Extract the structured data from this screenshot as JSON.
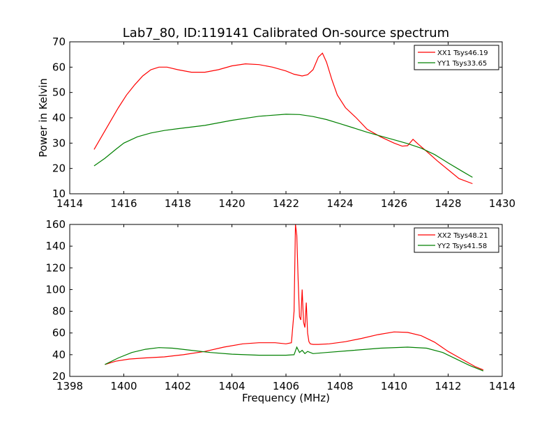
{
  "chart_data": [
    {
      "type": "line",
      "title": "Lab7_80, ID:119141 Calibrated On-source spectrum",
      "xlabel": "",
      "ylabel": "Power in Kelvin",
      "xlim": [
        1414,
        1430
      ],
      "ylim": [
        10,
        70
      ],
      "xticks": [
        1414,
        1416,
        1418,
        1420,
        1422,
        1424,
        1426,
        1428,
        1430
      ],
      "yticks": [
        10,
        20,
        30,
        40,
        50,
        60,
        70
      ],
      "legend": "top-right",
      "grid": false,
      "series": [
        {
          "name": "XX1 Tsys46.19",
          "color": "#ff0000",
          "x": [
            1414.9,
            1415.2,
            1415.5,
            1415.8,
            1416.1,
            1416.4,
            1416.7,
            1417.0,
            1417.3,
            1417.6,
            1418.0,
            1418.5,
            1419.0,
            1419.5,
            1420.0,
            1420.5,
            1421.0,
            1421.5,
            1422.0,
            1422.3,
            1422.6,
            1422.8,
            1423.0,
            1423.2,
            1423.35,
            1423.5,
            1423.7,
            1423.9,
            1424.2,
            1424.6,
            1425.0,
            1425.5,
            1426.0,
            1426.3,
            1426.5,
            1426.7,
            1426.9,
            1427.2,
            1427.6,
            1428.0,
            1428.4,
            1428.9
          ],
          "y": [
            27.5,
            33,
            38.5,
            44,
            49,
            53,
            56.5,
            59,
            60,
            60,
            59,
            58,
            58,
            59,
            60.5,
            61.3,
            61,
            60,
            58.5,
            57.2,
            56.5,
            57,
            59,
            64,
            65.5,
            62,
            55,
            49,
            44,
            40,
            35.5,
            32.5,
            30,
            28.8,
            29,
            31.5,
            29.5,
            26.8,
            23,
            19.5,
            16,
            14
          ]
        },
        {
          "name": "YY1 Tsys33.65",
          "color": "#008000",
          "x": [
            1414.9,
            1415.3,
            1415.7,
            1416.0,
            1416.5,
            1417.0,
            1417.5,
            1418.0,
            1419.0,
            1420.0,
            1421.0,
            1422.0,
            1422.5,
            1423.0,
            1423.5,
            1424.0,
            1424.5,
            1425.0,
            1425.5,
            1426.0,
            1426.5,
            1427.0,
            1427.5,
            1428.0,
            1428.5,
            1428.9
          ],
          "y": [
            21,
            24,
            27.5,
            30,
            32.5,
            34,
            35,
            35.7,
            37,
            39,
            40.6,
            41.4,
            41.3,
            40.5,
            39.3,
            37.7,
            36,
            34.3,
            32.8,
            31.3,
            29.8,
            28,
            25.5,
            22.2,
            19,
            16.5
          ]
        }
      ]
    },
    {
      "type": "line",
      "title": "",
      "xlabel": "Frequency (MHz)",
      "ylabel": "",
      "xlim": [
        1398,
        1414
      ],
      "ylim": [
        20,
        160
      ],
      "xticks": [
        1398,
        1400,
        1402,
        1404,
        1406,
        1408,
        1410,
        1412,
        1414
      ],
      "yticks": [
        20,
        40,
        60,
        80,
        100,
        120,
        140,
        160
      ],
      "legend": "top-right",
      "grid": false,
      "series": [
        {
          "name": "XX2 Tsys48.21",
          "color": "#ff0000",
          "x": [
            1399.3,
            1399.7,
            1400.2,
            1400.8,
            1401.5,
            1402.2,
            1403.0,
            1403.7,
            1404.4,
            1405.0,
            1405.6,
            1406.0,
            1406.2,
            1406.3,
            1406.35,
            1406.4,
            1406.45,
            1406.5,
            1406.55,
            1406.6,
            1406.65,
            1406.7,
            1406.75,
            1406.8,
            1406.85,
            1406.9,
            1407.0,
            1407.2,
            1407.6,
            1408.2,
            1408.8,
            1409.4,
            1410.0,
            1410.5,
            1411.0,
            1411.5,
            1412.0,
            1412.5,
            1413.0,
            1413.3
          ],
          "y": [
            31,
            34,
            36,
            37,
            38,
            40,
            43,
            47,
            50,
            51,
            51,
            50,
            51,
            80,
            160,
            150,
            110,
            75,
            72,
            100,
            70,
            65,
            88,
            60,
            52,
            50,
            49.5,
            49.5,
            50,
            52,
            55,
            58.5,
            61,
            60.5,
            57.5,
            51.5,
            43,
            36,
            29,
            26
          ]
        },
        {
          "name": "YY2 Tsys41.58",
          "color": "#008000",
          "x": [
            1399.3,
            1399.8,
            1400.3,
            1400.8,
            1401.3,
            1401.8,
            1402.5,
            1403.2,
            1404.0,
            1405.0,
            1406.0,
            1406.3,
            1406.4,
            1406.5,
            1406.6,
            1406.7,
            1406.8,
            1407.0,
            1407.5,
            1408.5,
            1409.5,
            1410.5,
            1411.2,
            1411.8,
            1412.3,
            1412.8,
            1413.3
          ],
          "y": [
            31,
            37,
            42,
            45,
            46.5,
            46,
            44,
            42,
            40.5,
            39.5,
            39.5,
            40,
            47,
            42,
            44,
            41,
            43,
            41,
            42,
            44,
            46,
            47,
            46,
            42,
            36,
            30,
            25
          ]
        }
      ]
    }
  ]
}
